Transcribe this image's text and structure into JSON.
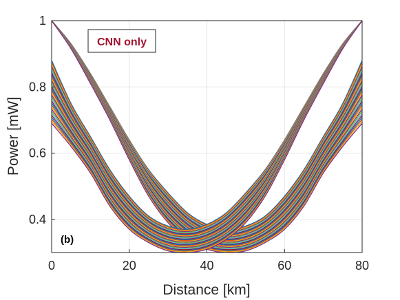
{
  "chart_data": {
    "type": "line",
    "xlabel": "Distance [km]",
    "ylabel": "Power [mW]",
    "xlim": [
      0,
      80
    ],
    "ylim": [
      0.3,
      1.0
    ],
    "xticks": [
      0,
      20,
      40,
      60,
      80
    ],
    "yticks": [
      0.4,
      0.6,
      0.8,
      1
    ],
    "xtick_labels": [
      "0",
      "20",
      "40",
      "60",
      "80"
    ],
    "ytick_labels": [
      "0.4",
      "0.6",
      "0.8",
      "1"
    ],
    "grid": true,
    "legend_text": "CNN only",
    "legend_color": "#a2142f",
    "legend_position": "top-left",
    "panel_label": "(b)",
    "series_groups": [
      {
        "group": "forward",
        "curve_count": 32,
        "x": [
          0,
          5,
          10,
          15,
          20,
          25,
          30,
          35,
          40,
          45,
          50,
          55,
          60,
          65,
          70,
          75,
          80
        ],
        "y_upper": [
          1.0,
          0.93,
          0.84,
          0.74,
          0.64,
          0.55,
          0.48,
          0.42,
          0.385,
          0.37,
          0.38,
          0.41,
          0.47,
          0.55,
          0.65,
          0.75,
          0.88
        ],
        "y_lower": [
          1.0,
          0.915,
          0.81,
          0.7,
          0.58,
          0.47,
          0.39,
          0.34,
          0.31,
          0.3,
          0.305,
          0.33,
          0.37,
          0.44,
          0.54,
          0.62,
          0.69
        ]
      },
      {
        "group": "backward",
        "curve_count": 32,
        "x": [
          0,
          5,
          10,
          15,
          20,
          25,
          30,
          35,
          40,
          45,
          50,
          55,
          60,
          65,
          70,
          75,
          80
        ],
        "y_upper": [
          0.88,
          0.75,
          0.65,
          0.55,
          0.47,
          0.41,
          0.38,
          0.37,
          0.385,
          0.42,
          0.48,
          0.55,
          0.64,
          0.74,
          0.84,
          0.93,
          1.0
        ],
        "y_lower": [
          0.69,
          0.62,
          0.54,
          0.44,
          0.37,
          0.33,
          0.305,
          0.3,
          0.31,
          0.34,
          0.39,
          0.47,
          0.58,
          0.7,
          0.81,
          0.915,
          1.0
        ]
      }
    ],
    "palette": [
      "#0072bd",
      "#d95319",
      "#edb120",
      "#7e2f8e",
      "#77ac30",
      "#4dbeee",
      "#a2142f"
    ]
  }
}
